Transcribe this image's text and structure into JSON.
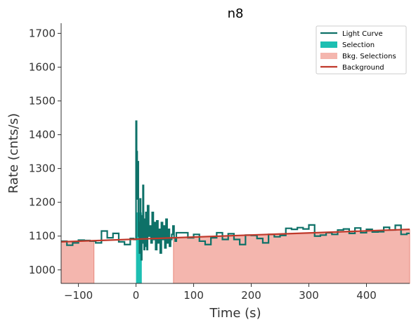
{
  "chart_data": {
    "type": "line",
    "title": "n8",
    "xlabel": "Time (s)",
    "ylabel": "Rate (cnts/s)",
    "xlim": [
      -130,
      475
    ],
    "ylim": [
      960,
      1730
    ],
    "xticks": [
      -100,
      0,
      100,
      200,
      300,
      400
    ],
    "yticks": [
      1000,
      1100,
      1200,
      1300,
      1400,
      1500,
      1600,
      1700
    ],
    "grid": false,
    "legend_position": "top-right",
    "legend": [
      {
        "label": "Light Curve",
        "kind": "line",
        "color": "#0e7168"
      },
      {
        "label": "Selection",
        "kind": "patch",
        "color": "#1cbfb2"
      },
      {
        "label": "Bkg. Selections",
        "kind": "patch",
        "color": "#f4b6ae"
      },
      {
        "label": "Background",
        "kind": "line",
        "color": "#c0392b"
      }
    ],
    "selection": {
      "x_start": 0,
      "x_end": 10,
      "color": "#1cbfb2"
    },
    "bkg_selections": [
      {
        "x_start": -130,
        "x_end": -73
      },
      {
        "x_start": 65,
        "x_end": 475
      }
    ],
    "background": {
      "x": [
        -130,
        475
      ],
      "y": [
        1083,
        1120
      ],
      "color": "#c0392b"
    },
    "light_curve": {
      "color": "#0e7168",
      "x": [
        -130,
        -120,
        -110,
        -100,
        -90,
        -80,
        -70,
        -60,
        -50,
        -40,
        -30,
        -20,
        -10,
        -4,
        0,
        1,
        2,
        3,
        4,
        5,
        6,
        7,
        8,
        9,
        10,
        11,
        12,
        13,
        14,
        15,
        16,
        17,
        18,
        19,
        20,
        22,
        24,
        26,
        28,
        30,
        32,
        34,
        36,
        38,
        40,
        42,
        44,
        46,
        48,
        50,
        52,
        54,
        56,
        58,
        60,
        62,
        64,
        66,
        68,
        70,
        80,
        90,
        100,
        110,
        120,
        130,
        140,
        150,
        160,
        170,
        180,
        190,
        200,
        210,
        220,
        230,
        240,
        250,
        260,
        270,
        280,
        290,
        300,
        310,
        320,
        330,
        340,
        350,
        360,
        370,
        380,
        390,
        400,
        410,
        420,
        430,
        440,
        450,
        460,
        470
      ],
      "y": [
        1085,
        1073,
        1080,
        1088,
        1087,
        1085,
        1080,
        1115,
        1095,
        1108,
        1083,
        1075,
        1093,
        1090,
        1440,
        1350,
        1210,
        1320,
        1100,
        1140,
        1050,
        1210,
        1130,
        1030,
        1160,
        1080,
        1250,
        1140,
        1060,
        1150,
        1070,
        1170,
        1100,
        1060,
        1190,
        1100,
        1130,
        1080,
        1170,
        1090,
        1140,
        1060,
        1145,
        1080,
        1120,
        1050,
        1140,
        1090,
        1130,
        1065,
        1150,
        1080,
        1120,
        1070,
        1090,
        1105,
        1130,
        1095,
        1085,
        1110,
        1110,
        1095,
        1105,
        1085,
        1075,
        1095,
        1110,
        1090,
        1107,
        1090,
        1075,
        1103,
        1102,
        1093,
        1080,
        1105,
        1098,
        1102,
        1123,
        1120,
        1125,
        1121,
        1133,
        1100,
        1103,
        1110,
        1105,
        1118,
        1121,
        1108,
        1124,
        1110,
        1120,
        1112,
        1113,
        1126,
        1118,
        1132,
        1105,
        1108
      ]
    }
  }
}
